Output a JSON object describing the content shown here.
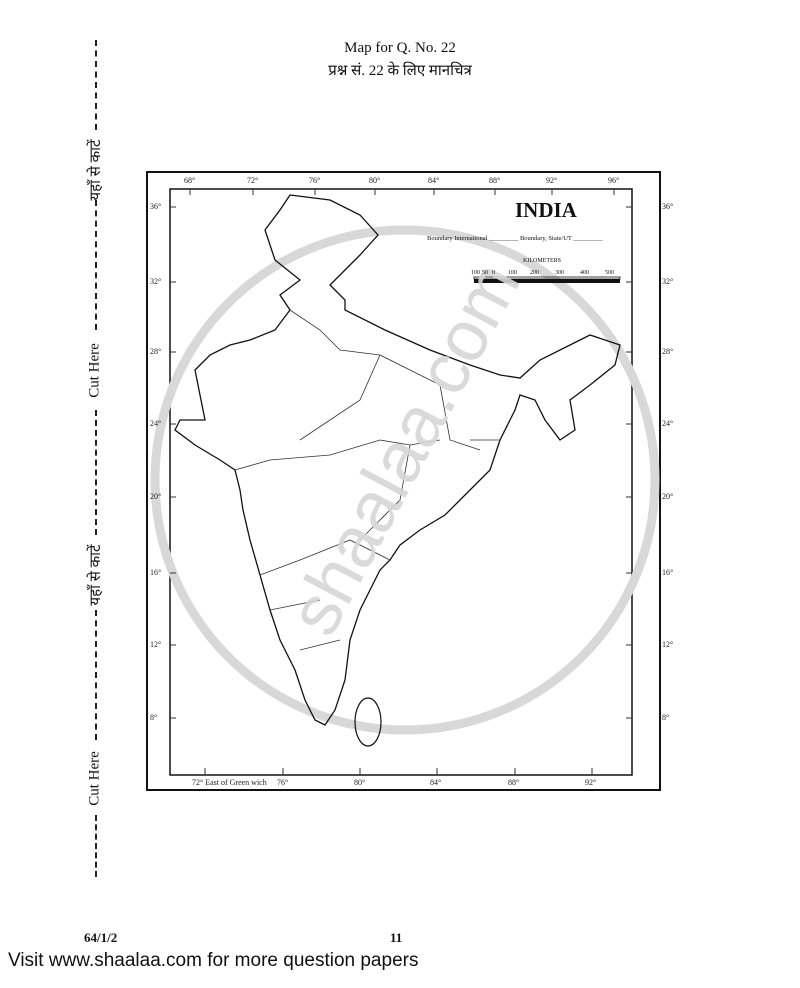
{
  "header": {
    "title_en": "Map for Q. No. 22",
    "title_hi": "प्रश्न सं. 22 के लिए मानचित्र"
  },
  "cut_line": {
    "cut_here_en": "Cut Here",
    "cut_here_hi": "यहाँ से काटें"
  },
  "map": {
    "title": "INDIA",
    "legend": "Boundary International _________ Boundary, State/UT _________",
    "scale_title": "KILOMETERS",
    "scale_labels": [
      "100",
      "50",
      "0",
      "100",
      "200",
      "300",
      "400",
      "500"
    ],
    "top_longitudes": [
      "68°",
      "72°",
      "76°",
      "80°",
      "84°",
      "88°",
      "92°",
      "96°"
    ],
    "bottom_longitudes": [
      "72° East of Green wich",
      "76°",
      "80°",
      "84°",
      "88°",
      "92°"
    ],
    "latitudes": [
      "36°",
      "32°",
      "28°",
      "24°",
      "20°",
      "16°",
      "12°",
      "8°"
    ],
    "watermark": "shaalaa.com"
  },
  "footer": {
    "code": "64/1/2",
    "page": "11",
    "visit": "Visit www.shaalaa.com for more question papers"
  }
}
